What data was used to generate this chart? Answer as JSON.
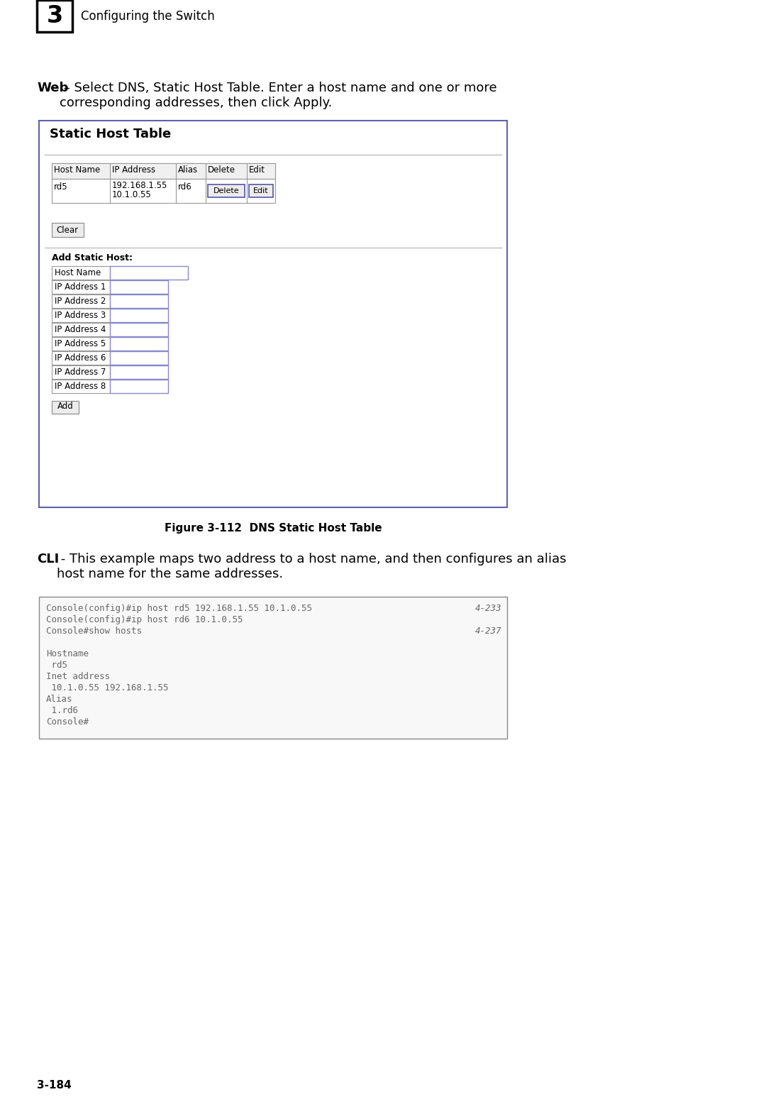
{
  "page_bg": "#ffffff",
  "page_num": "3-184",
  "chapter_num": "3",
  "chapter_title": "Configuring the Switch",
  "web_bold": "Web",
  "web_text": " – Select DNS, Static Host Table. Enter a host name and one or more\ncorresponding addresses, then click Apply.",
  "panel_title": "Static Host Table",
  "table_headers": [
    "Host Name",
    "IP Address",
    "Alias",
    "Delete",
    "Edit"
  ],
  "table_row_col0": "rd5",
  "table_row_col1a": "192.168.1.55",
  "table_row_col1b": "10.1.0.55",
  "table_row_col2": "rd6",
  "delete_btn": "Delete",
  "edit_btn": "Edit",
  "clear_btn": "Clear",
  "add_section_title": "Add Static Host:",
  "form_fields": [
    "Host Name",
    "IP Address 1",
    "IP Address 2",
    "IP Address 3",
    "IP Address 4",
    "IP Address 5",
    "IP Address 6",
    "IP Address 7",
    "IP Address 8"
  ],
  "add_btn": "Add",
  "figure_label": "Figure 3-112  DNS Static Host Table",
  "cli_bold": "CLI",
  "cli_text": " - This example maps two address to a host name, and then configures an alias\nhost name for the same addresses.",
  "cli_lines": [
    {
      "text": "Console(config)#ip host rd5 192.168.1.55 10.1.0.55",
      "ref": "4-233"
    },
    {
      "text": "Console(config)#ip host rd6 10.1.0.55",
      "ref": ""
    },
    {
      "text": "Console#show hosts",
      "ref": "4-237"
    },
    {
      "text": "",
      "ref": ""
    },
    {
      "text": "Hostname",
      "ref": ""
    },
    {
      "text": " rd5",
      "ref": ""
    },
    {
      "text": "Inet address",
      "ref": ""
    },
    {
      "text": " 10.1.0.55 192.168.1.55",
      "ref": ""
    },
    {
      "text": "Alias",
      "ref": ""
    },
    {
      "text": " 1.rd6",
      "ref": ""
    },
    {
      "text": "Console#",
      "ref": ""
    }
  ],
  "panel_border_color": "#6060b0",
  "panel_bg": "#ffffff",
  "table_border_color": "#999999",
  "form_input_border_host": "#8888cc",
  "form_input_border_ip": "#8888cc",
  "cli_bg": "#f8f8f8",
  "cli_border": "#888888",
  "cli_font_color": "#666666",
  "header_bg": "#f0f0f0"
}
